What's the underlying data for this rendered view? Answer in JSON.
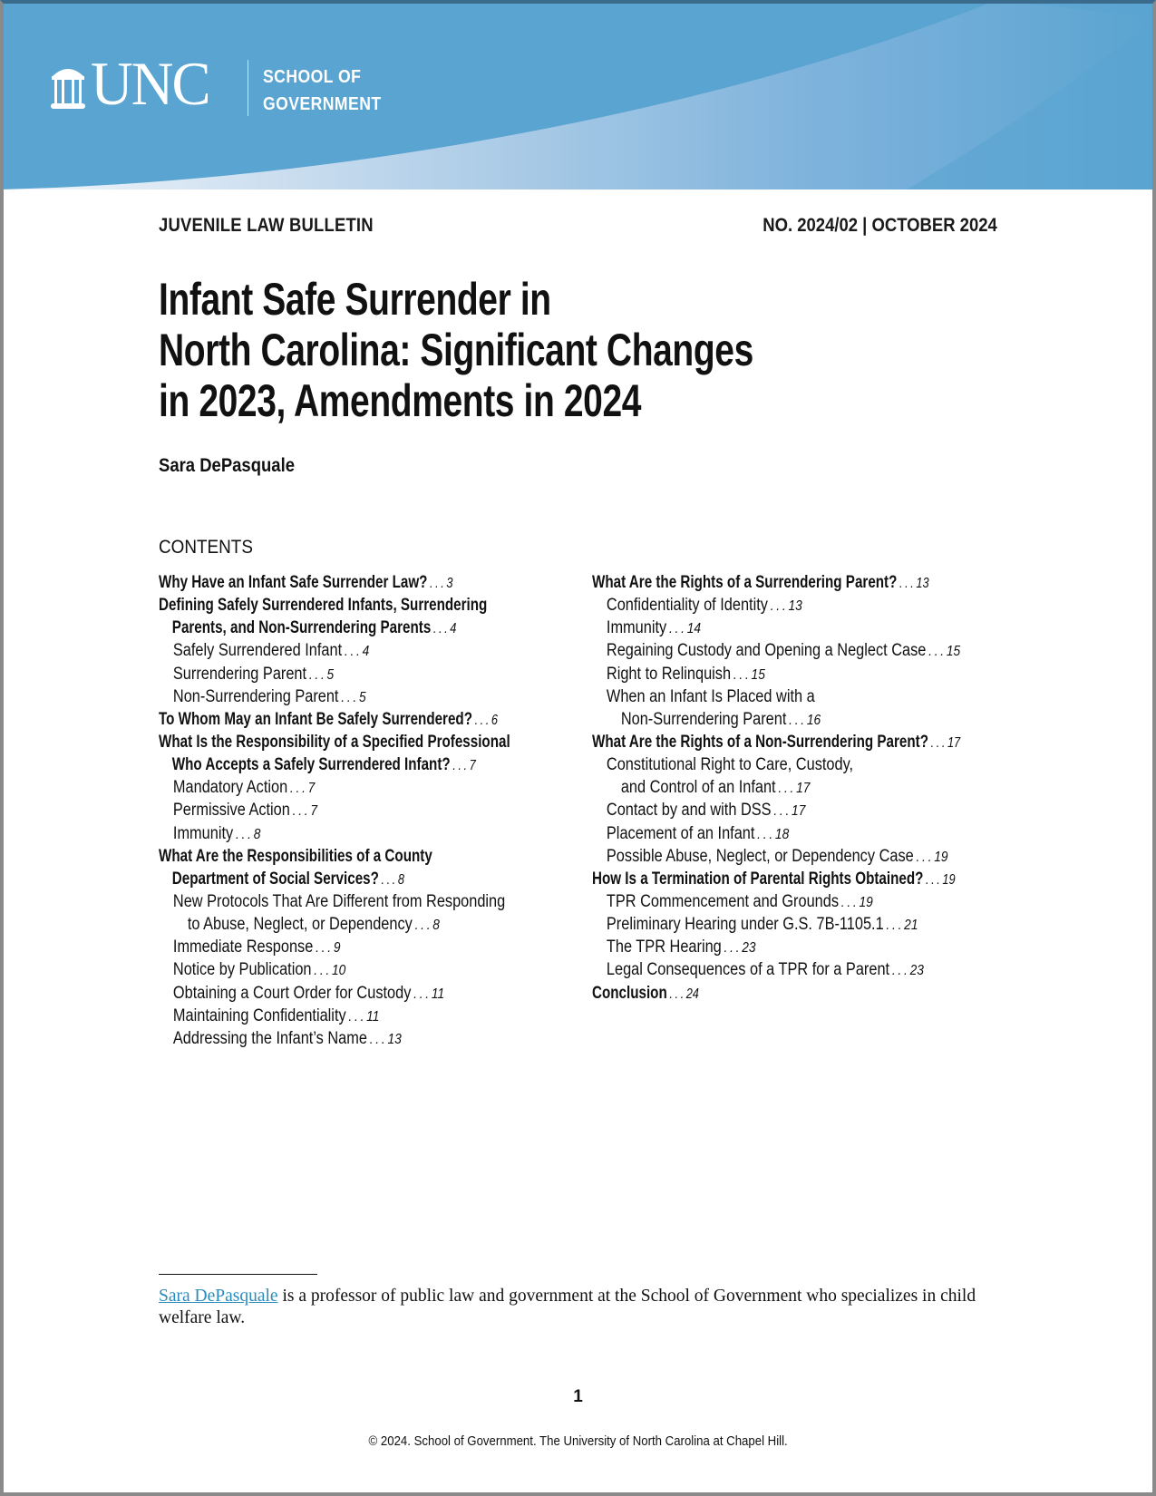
{
  "header": {
    "logo_text": "UNC",
    "logo_subtitle_line1": "SCHOOL OF",
    "logo_subtitle_line2": "GOVERNMENT",
    "banner_color": "#5aa4d1"
  },
  "series": "JUVENILE LAW BULLETIN",
  "issue": "NO. 2024/02 | OCTOBER 2024",
  "title_lines": [
    "Infant Safe Surrender in",
    "North Carolina: Significant Changes",
    "in 2023, Amendments in 2024"
  ],
  "author": "Sara DePasquale",
  "contents_heading": "CONTENTS",
  "toc": {
    "left": [
      {
        "text": "Why Have an Infant Safe Surrender Law?",
        "page": "3",
        "bold": true,
        "level": 0
      },
      {
        "text": "Defining Safely Surrendered Infants, Surrendering",
        "page": "",
        "bold": true,
        "level": 0
      },
      {
        "text": "Parents, and Non-Surrendering Parents",
        "page": "4",
        "bold": true,
        "level": 1
      },
      {
        "text": "Safely Surrendered Infant",
        "page": "4",
        "bold": false,
        "level": 1
      },
      {
        "text": "Surrendering Parent",
        "page": "5",
        "bold": false,
        "level": 1
      },
      {
        "text": "Non-Surrendering Parent",
        "page": "5",
        "bold": false,
        "level": 1
      },
      {
        "text": "To Whom May an Infant Be Safely Surrendered?",
        "page": "6",
        "bold": true,
        "level": 0
      },
      {
        "text": "What Is the Responsibility of a Specified Professional",
        "page": "",
        "bold": true,
        "level": 0
      },
      {
        "text": "Who Accepts a Safely Surrendered Infant?",
        "page": "7",
        "bold": true,
        "level": 1
      },
      {
        "text": "Mandatory Action",
        "page": "7",
        "bold": false,
        "level": 1
      },
      {
        "text": "Permissive Action",
        "page": "7",
        "bold": false,
        "level": 1
      },
      {
        "text": "Immunity",
        "page": "8",
        "bold": false,
        "level": 1
      },
      {
        "text": "What Are the Responsibilities of a County",
        "page": "",
        "bold": true,
        "level": 0
      },
      {
        "text": "Department of Social Services?",
        "page": "8",
        "bold": true,
        "level": 1
      },
      {
        "text": "New Protocols That Are Different from Responding",
        "page": "",
        "bold": false,
        "level": 1
      },
      {
        "text": "to Abuse, Neglect, or Dependency",
        "page": "8",
        "bold": false,
        "level": 2
      },
      {
        "text": "Immediate Response",
        "page": "9",
        "bold": false,
        "level": 1
      },
      {
        "text": "Notice by Publication",
        "page": "10",
        "bold": false,
        "level": 1
      },
      {
        "text": "Obtaining a Court Order for Custody",
        "page": "11",
        "bold": false,
        "level": 1
      },
      {
        "text": "Maintaining Confidentiality",
        "page": "11",
        "bold": false,
        "level": 1
      },
      {
        "text": "Addressing the Infant’s Name",
        "page": "13",
        "bold": false,
        "level": 1
      }
    ],
    "right": [
      {
        "text": "What Are the Rights of a Surrendering Parent?",
        "page": "13",
        "bold": true,
        "level": 0
      },
      {
        "text": "Confidentiality of Identity",
        "page": "13",
        "bold": false,
        "level": 1
      },
      {
        "text": "Immunity",
        "page": "14",
        "bold": false,
        "level": 1
      },
      {
        "text": "Regaining Custody and Opening a Neglect Case",
        "page": "15",
        "bold": false,
        "level": 1
      },
      {
        "text": "Right to Relinquish",
        "page": "15",
        "bold": false,
        "level": 1
      },
      {
        "text": "When an Infant Is Placed with a",
        "page": "",
        "bold": false,
        "level": 1
      },
      {
        "text": "Non-Surrendering Parent",
        "page": "16",
        "bold": false,
        "level": 2
      },
      {
        "text": "What Are the Rights of a Non-Surrendering Parent?",
        "page": "17",
        "bold": true,
        "level": 0
      },
      {
        "text": "Constitutional Right to Care, Custody,",
        "page": "",
        "bold": false,
        "level": 1
      },
      {
        "text": "and Control of an Infant",
        "page": "17",
        "bold": false,
        "level": 2
      },
      {
        "text": "Contact by and with DSS",
        "page": "17",
        "bold": false,
        "level": 1
      },
      {
        "text": "Placement of an Infant",
        "page": "18",
        "bold": false,
        "level": 1
      },
      {
        "text": "Possible Abuse, Neglect, or Dependency Case",
        "page": "19",
        "bold": false,
        "level": 1
      },
      {
        "text": "How Is a Termination of Parental Rights Obtained?",
        "page": "19",
        "bold": true,
        "level": 0
      },
      {
        "text": "TPR Commencement and Grounds",
        "page": "19",
        "bold": false,
        "level": 1
      },
      {
        "text": "Preliminary Hearing under G.S. 7B-1105.1",
        "page": "21",
        "bold": false,
        "level": 1
      },
      {
        "text": "The TPR Hearing",
        "page": "23",
        "bold": false,
        "level": 1
      },
      {
        "text": "Legal Consequences of a TPR for a Parent",
        "page": "23",
        "bold": false,
        "level": 1
      },
      {
        "text": "Conclusion",
        "page": "24",
        "bold": true,
        "level": 0
      }
    ]
  },
  "footnote": {
    "author_link": "Sara DePasquale",
    "text": " is a professor of public law and government at the School of Government who specializes in child welfare law.",
    "link_color": "#2a8bbd"
  },
  "page_number": "1",
  "copyright": "© 2024. School of Government. The University of North Carolina at Chapel Hill."
}
